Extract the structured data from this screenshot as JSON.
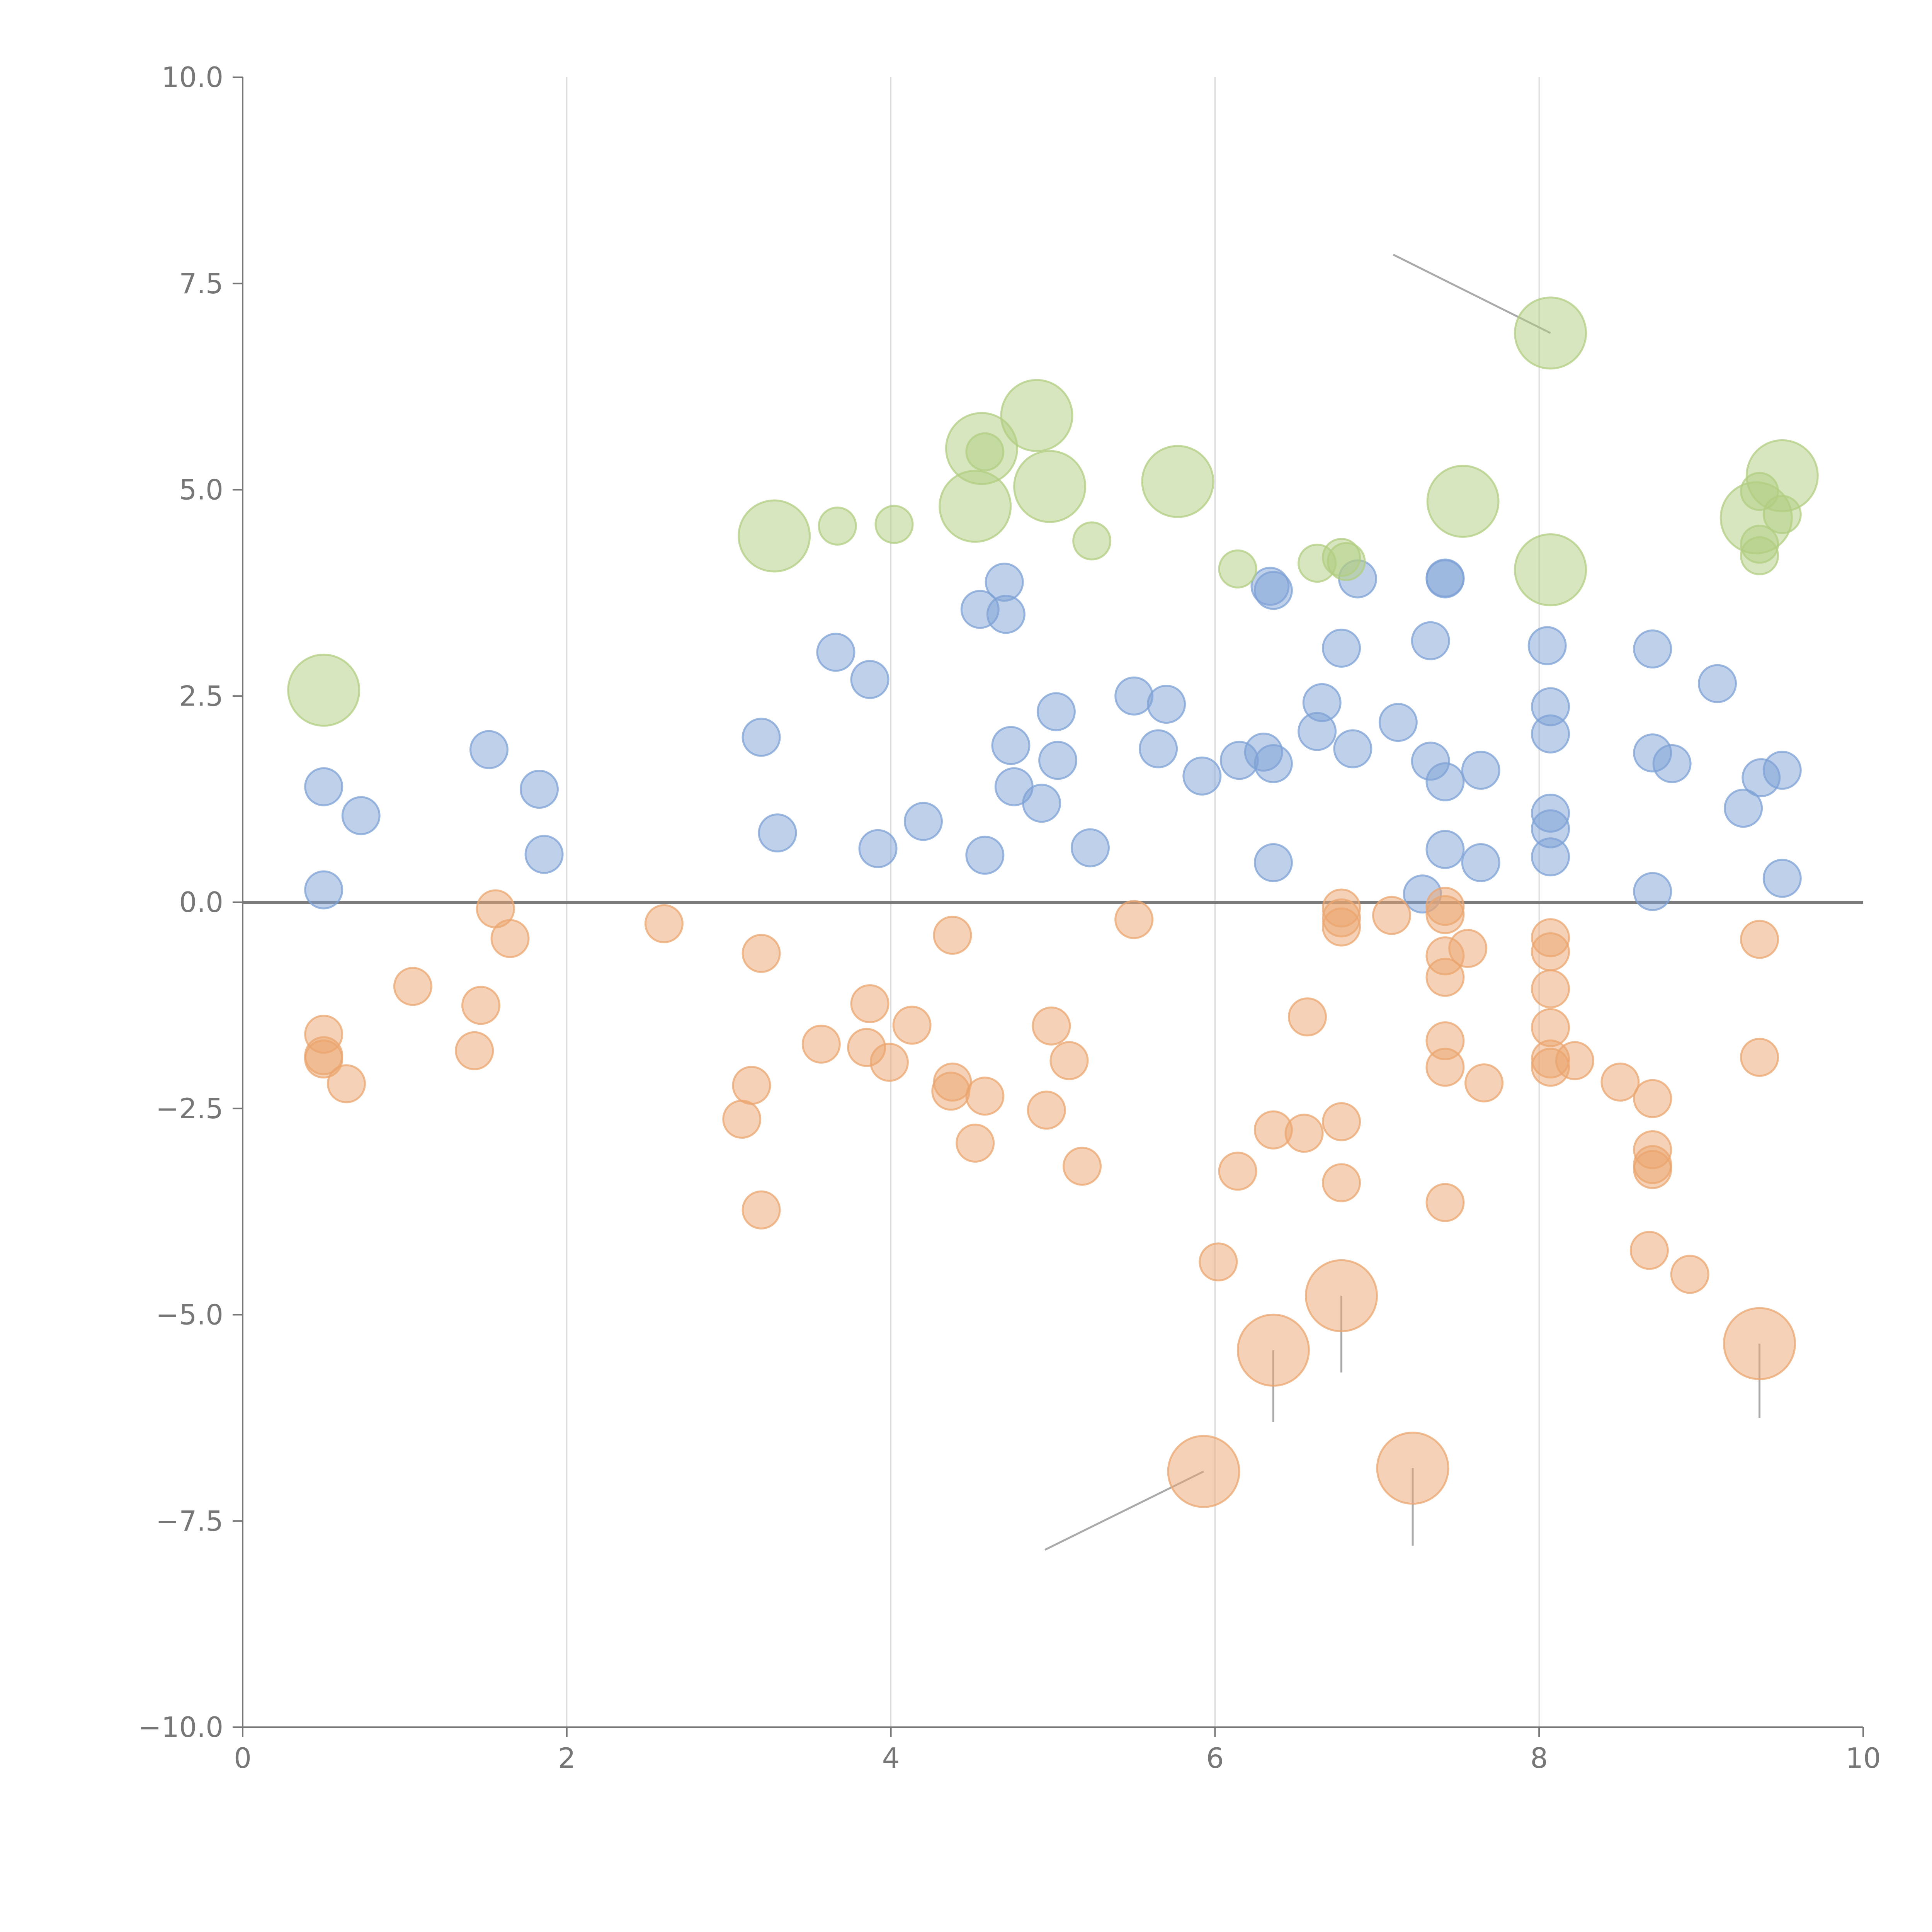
{
  "chart_data": {
    "type": "scatter",
    "title": "",
    "xlabel": "",
    "ylabel": "",
    "xlim": [
      0,
      10
    ],
    "ylim": [
      -10,
      10
    ],
    "xticks": [
      "0",
      "2",
      "4",
      "6",
      "8",
      "10"
    ],
    "yticks": [
      "10.0",
      "7.5",
      "5.0",
      "2.5",
      "0.0",
      "−2.5",
      "−5.0",
      "−7.5",
      "−10.0"
    ],
    "xgrid": [
      2,
      4,
      6,
      8
    ],
    "reference_line_y": 0,
    "legend": "none",
    "colors": {
      "blue": "#7ea1d5",
      "orange": "#eba56f",
      "green": "#b1cd82"
    },
    "series": [
      {
        "name": "blue",
        "size": "small",
        "points": [
          [
            0.5,
            1.4
          ],
          [
            0.5,
            0.15
          ],
          [
            0.73,
            1.05
          ],
          [
            1.52,
            1.85
          ],
          [
            1.83,
            1.37
          ],
          [
            1.86,
            0.58
          ],
          [
            3.2,
            2.0
          ],
          [
            3.3,
            0.84
          ],
          [
            3.66,
            3.03
          ],
          [
            3.87,
            2.7
          ],
          [
            3.92,
            0.65
          ],
          [
            4.2,
            0.98
          ],
          [
            4.55,
            3.55
          ],
          [
            4.58,
            0.57
          ],
          [
            4.7,
            3.88
          ],
          [
            4.71,
            3.49
          ],
          [
            4.74,
            1.9
          ],
          [
            4.76,
            1.4
          ],
          [
            4.93,
            1.2
          ],
          [
            5.02,
            2.31
          ],
          [
            5.03,
            1.72
          ],
          [
            5.23,
            0.66
          ],
          [
            5.5,
            2.5
          ],
          [
            5.65,
            1.86
          ],
          [
            5.7,
            2.4
          ],
          [
            5.92,
            1.53
          ],
          [
            6.15,
            1.72
          ],
          [
            6.3,
            1.82
          ],
          [
            6.34,
            3.83
          ],
          [
            6.36,
            3.78
          ],
          [
            6.36,
            1.68
          ],
          [
            6.36,
            0.48
          ],
          [
            6.63,
            2.07
          ],
          [
            6.66,
            2.42
          ],
          [
            6.78,
            3.08
          ],
          [
            6.85,
            1.86
          ],
          [
            6.88,
            3.92
          ],
          [
            7.13,
            2.18
          ],
          [
            7.28,
            0.1
          ],
          [
            7.33,
            3.17
          ],
          [
            7.33,
            1.71
          ],
          [
            7.42,
            3.93
          ],
          [
            7.42,
            3.92
          ],
          [
            7.42,
            1.46
          ],
          [
            7.42,
            0.64
          ],
          [
            7.64,
            1.6
          ],
          [
            7.64,
            0.48
          ],
          [
            8.05,
            3.11
          ],
          [
            8.07,
            2.37
          ],
          [
            8.07,
            2.04
          ],
          [
            8.07,
            1.08
          ],
          [
            8.07,
            0.89
          ],
          [
            8.07,
            0.55
          ],
          [
            8.7,
            3.07
          ],
          [
            8.7,
            1.81
          ],
          [
            8.7,
            0.13
          ],
          [
            8.82,
            1.68
          ],
          [
            9.1,
            2.65
          ],
          [
            9.26,
            1.14
          ],
          [
            9.37,
            1.51
          ],
          [
            9.5,
            1.6
          ],
          [
            9.5,
            0.29
          ]
        ]
      },
      {
        "name": "orange",
        "size": "small",
        "points": [
          [
            0.5,
            -1.6
          ],
          [
            0.5,
            -1.86
          ],
          [
            0.5,
            -1.9
          ],
          [
            0.64,
            -2.2
          ],
          [
            1.05,
            -1.02
          ],
          [
            1.43,
            -1.8
          ],
          [
            1.47,
            -1.25
          ],
          [
            1.56,
            -0.08
          ],
          [
            1.65,
            -0.44
          ],
          [
            2.6,
            -0.26
          ],
          [
            3.08,
            -2.63
          ],
          [
            3.14,
            -2.22
          ],
          [
            3.2,
            -0.62
          ],
          [
            3.2,
            -3.73
          ],
          [
            3.57,
            -1.72
          ],
          [
            3.85,
            -1.76
          ],
          [
            3.87,
            -1.23
          ],
          [
            3.99,
            -1.94
          ],
          [
            4.13,
            -1.49
          ],
          [
            4.37,
            -2.29
          ],
          [
            4.38,
            -2.18
          ],
          [
            4.38,
            -0.4
          ],
          [
            4.52,
            -2.92
          ],
          [
            4.58,
            -2.35
          ],
          [
            4.96,
            -2.52
          ],
          [
            4.99,
            -1.5
          ],
          [
            5.1,
            -1.92
          ],
          [
            5.18,
            -3.2
          ],
          [
            5.5,
            -0.21
          ],
          [
            6.02,
            -4.36
          ],
          [
            6.14,
            -3.26
          ],
          [
            6.36,
            -2.76
          ],
          [
            6.55,
            -2.8
          ],
          [
            6.57,
            -1.39
          ],
          [
            6.78,
            -0.07
          ],
          [
            6.78,
            -0.19
          ],
          [
            6.78,
            -0.3
          ],
          [
            6.78,
            -2.66
          ],
          [
            6.78,
            -3.4
          ],
          [
            7.09,
            -0.16
          ],
          [
            7.42,
            -0.05
          ],
          [
            7.42,
            -0.15
          ],
          [
            7.42,
            -0.65
          ],
          [
            7.42,
            -0.91
          ],
          [
            7.42,
            -1.68
          ],
          [
            7.42,
            -2.0
          ],
          [
            7.42,
            -3.64
          ],
          [
            7.56,
            -0.56
          ],
          [
            7.66,
            -2.19
          ],
          [
            8.07,
            -0.43
          ],
          [
            8.07,
            -0.6
          ],
          [
            8.07,
            -1.05
          ],
          [
            8.07,
            -1.52
          ],
          [
            8.07,
            -1.9
          ],
          [
            8.07,
            -2.0
          ],
          [
            8.22,
            -1.92
          ],
          [
            8.5,
            -2.18
          ],
          [
            8.7,
            -2.38
          ],
          [
            8.7,
            -3.0
          ],
          [
            8.7,
            -3.18
          ],
          [
            8.7,
            -3.24
          ],
          [
            8.68,
            -4.22
          ],
          [
            8.93,
            -4.51
          ],
          [
            9.36,
            -0.45
          ],
          [
            9.36,
            -1.88
          ]
        ]
      },
      {
        "name": "orange-large",
        "size": "large",
        "points": [
          [
            6.36,
            -5.43
          ],
          [
            6.78,
            -4.77
          ],
          [
            5.93,
            -6.9
          ],
          [
            7.22,
            -6.86
          ],
          [
            9.36,
            -5.35
          ]
        ]
      },
      {
        "name": "green",
        "size": "small",
        "points": [
          [
            3.67,
            4.56
          ],
          [
            4.02,
            4.58
          ],
          [
            4.58,
            5.46
          ],
          [
            5.24,
            4.38
          ],
          [
            6.14,
            4.04
          ],
          [
            6.63,
            4.11
          ],
          [
            6.78,
            4.18
          ],
          [
            6.81,
            4.13
          ],
          [
            9.36,
            4.98
          ],
          [
            9.36,
            4.34
          ],
          [
            9.36,
            4.2
          ],
          [
            9.5,
            4.7
          ]
        ]
      },
      {
        "name": "green-large",
        "size": "large",
        "points": [
          [
            0.5,
            2.57
          ],
          [
            3.28,
            4.44
          ],
          [
            4.52,
            4.8
          ],
          [
            4.56,
            5.5
          ],
          [
            4.9,
            5.9
          ],
          [
            4.98,
            5.04
          ],
          [
            5.77,
            5.1
          ],
          [
            7.53,
            4.86
          ],
          [
            8.07,
            6.9
          ],
          [
            8.07,
            4.03
          ],
          [
            9.34,
            4.66
          ],
          [
            9.5,
            5.17
          ]
        ]
      }
    ],
    "annotations": [
      {
        "series": "green-large",
        "point": [
          8.07,
          6.9
        ],
        "label_at": [
          7.1,
          7.85
        ]
      },
      {
        "series": "orange-large",
        "point": [
          5.93,
          -6.9
        ],
        "label_at": [
          4.95,
          -7.85
        ]
      },
      {
        "series": "orange-large",
        "point": [
          6.36,
          -5.43
        ],
        "label_at": [
          6.36,
          -6.3
        ]
      },
      {
        "series": "orange-large",
        "point": [
          6.78,
          -4.77
        ],
        "label_at": [
          6.78,
          -5.7
        ]
      },
      {
        "series": "orange-large",
        "point": [
          7.22,
          -6.86
        ],
        "label_at": [
          7.22,
          -7.8
        ]
      },
      {
        "series": "orange-large",
        "point": [
          9.36,
          -5.35
        ],
        "label_at": [
          9.36,
          -6.25
        ]
      }
    ]
  }
}
